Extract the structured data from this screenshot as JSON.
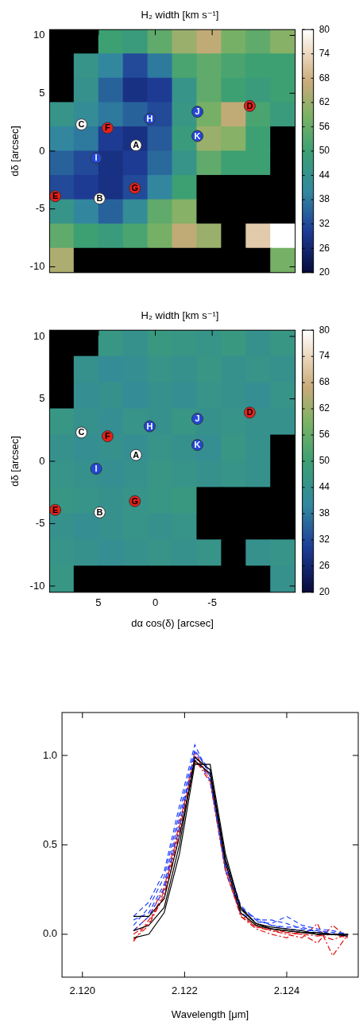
{
  "chart_data": [
    {
      "type": "heatmap",
      "title": "H₂ width [km s⁻¹]",
      "y_label": "dδ [arcsec]",
      "xlim": [
        9.3,
        -12.3
      ],
      "ylim": [
        -10.5,
        10.5
      ],
      "xticks": [
        5,
        0,
        -5
      ],
      "yticks": [
        -10,
        -5,
        0,
        5,
        10
      ],
      "tick_labels": "y",
      "cells_x": [
        8.22,
        6.06,
        3.9,
        1.74,
        -0.42,
        -2.58,
        -4.74,
        -6.9,
        -9.06,
        -11.22
      ],
      "cells_y": [
        9.45,
        7.35,
        5.25,
        3.15,
        1.05,
        -1.05,
        -3.15,
        -5.25,
        -7.35,
        -9.45
      ],
      "cells": [
        [
          null,
          null,
          50,
          48,
          55,
          62,
          66,
          58,
          55,
          60
        ],
        [
          null,
          45,
          40,
          32,
          38,
          52,
          55,
          52,
          50,
          50
        ],
        [
          null,
          44,
          35,
          28,
          30,
          45,
          55,
          50,
          48,
          50
        ],
        [
          45,
          42,
          38,
          35,
          32,
          46,
          58,
          66,
          52,
          48
        ],
        [
          40,
          38,
          30,
          28,
          34,
          48,
          62,
          60,
          50,
          null
        ],
        [
          35,
          32,
          28,
          30,
          36,
          45,
          55,
          50,
          50,
          null
        ],
        [
          32,
          30,
          28,
          32,
          40,
          50,
          null,
          null,
          null,
          null
        ],
        [
          45,
          40,
          35,
          42,
          55,
          60,
          null,
          null,
          null,
          null
        ],
        [
          55,
          50,
          48,
          52,
          58,
          66,
          62,
          null,
          72,
          80
        ],
        [
          64,
          null,
          null,
          null,
          null,
          null,
          null,
          null,
          null,
          58
        ]
      ],
      "colorbar": {
        "range": [
          20,
          80
        ],
        "ticks": [
          20,
          26,
          32,
          38,
          44,
          50,
          56,
          62,
          68,
          74,
          80
        ]
      },
      "markers": {
        "marker": "circle",
        "labels": [
          "A",
          "B",
          "C",
          "D",
          "E",
          "F",
          "G",
          "H",
          "I",
          "J",
          "K"
        ],
        "x": [
          1.7,
          4.9,
          6.5,
          -8.3,
          8.8,
          4.2,
          1.8,
          0.5,
          5.2,
          -3.7,
          -3.7
        ],
        "y": [
          0.5,
          -4.1,
          2.3,
          3.9,
          -3.9,
          2.0,
          -3.2,
          2.8,
          -0.6,
          3.4,
          1.3
        ],
        "colors": [
          "#ffffff",
          "#ffffff",
          "#ffffff",
          "#e8201a",
          "#e8201a",
          "#e8201a",
          "#e8201a",
          "#2248d8",
          "#2248d8",
          "#2248d8",
          "#2248d8"
        ]
      }
    },
    {
      "type": "heatmap",
      "title": "H₂ width [km s⁻¹]",
      "x_label": "dα cos(δ) [arcsec]",
      "y_label": "dδ [arcsec]",
      "xlim": [
        9.3,
        -12.3
      ],
      "ylim": [
        -10.5,
        10.5
      ],
      "xticks": [
        5,
        0,
        -5
      ],
      "yticks": [
        -10,
        -5,
        0,
        5,
        10
      ],
      "cells_x": [
        8.22,
        6.06,
        3.9,
        1.74,
        -0.42,
        -2.58,
        -4.74,
        -6.9,
        -9.06,
        -11.22
      ],
      "cells_y": [
        9.45,
        7.35,
        5.25,
        3.15,
        1.05,
        -1.05,
        -3.15,
        -5.25,
        -7.35,
        -9.45
      ],
      "cells": [
        [
          null,
          null,
          46,
          44,
          47,
          46,
          45,
          47,
          44,
          46
        ],
        [
          null,
          44,
          42,
          43,
          45,
          44,
          46,
          44,
          45,
          44
        ],
        [
          null,
          43,
          44,
          42,
          44,
          43,
          45,
          44,
          43,
          45
        ],
        [
          46,
          44,
          43,
          45,
          44,
          46,
          44,
          45,
          44,
          44
        ],
        [
          44,
          43,
          44,
          43,
          45,
          44,
          43,
          46,
          44,
          null
        ],
        [
          45,
          44,
          43,
          44,
          46,
          45,
          44,
          45,
          44,
          null
        ],
        [
          46,
          45,
          44,
          45,
          46,
          47,
          null,
          null,
          null,
          null
        ],
        [
          44,
          43,
          44,
          45,
          44,
          45,
          null,
          null,
          null,
          null
        ],
        [
          45,
          44,
          43,
          44,
          45,
          44,
          45,
          null,
          44,
          45
        ],
        [
          46,
          null,
          null,
          null,
          null,
          null,
          null,
          null,
          null,
          44
        ]
      ],
      "colorbar": {
        "range": [
          20,
          80
        ],
        "ticks": [
          20,
          26,
          32,
          38,
          44,
          50,
          56,
          62,
          68,
          74,
          80
        ]
      },
      "markers": {
        "marker": "circle",
        "labels": [
          "A",
          "B",
          "C",
          "D",
          "E",
          "F",
          "G",
          "H",
          "I",
          "J",
          "K"
        ],
        "x": [
          1.7,
          4.9,
          6.5,
          -8.3,
          8.8,
          4.2,
          1.8,
          0.5,
          5.2,
          -3.7,
          -3.7
        ],
        "y": [
          0.5,
          -4.1,
          2.3,
          3.9,
          -3.9,
          2.0,
          -3.2,
          2.8,
          -0.6,
          3.4,
          1.3
        ],
        "colors": [
          "#ffffff",
          "#ffffff",
          "#ffffff",
          "#e8201a",
          "#e8201a",
          "#e8201a",
          "#e8201a",
          "#2248d8",
          "#2248d8",
          "#2248d8",
          "#2248d8"
        ]
      }
    },
    {
      "type": "line",
      "x_label": "Wavelength [μm]",
      "xlim": [
        2.1196,
        2.1254
      ],
      "ylim": [
        -0.24,
        1.24
      ],
      "xticks": [
        {
          "value": 2.12,
          "label": "2.120"
        },
        {
          "value": 2.122,
          "label": "2.122"
        },
        {
          "value": 2.124,
          "label": "2.124"
        }
      ],
      "yticks": [
        {
          "value": 0,
          "label": "0.0"
        },
        {
          "value": 0.5,
          "label": "0.5"
        },
        {
          "value": 1,
          "label": "1.0"
        }
      ],
      "x": [
        2.121,
        2.1213,
        2.1216,
        2.1219,
        2.1222,
        2.1225,
        2.1228,
        2.1231,
        2.1234,
        2.1237,
        2.124,
        2.1243,
        2.1246,
        2.1249,
        2.1252
      ],
      "series": [
        {
          "color": "#000000",
          "line_style": "solid",
          "values": [
            0.1,
            0.1,
            0.2,
            0.55,
            0.97,
            0.9,
            0.4,
            0.12,
            0.05,
            0.03,
            0.02,
            0.01,
            0.0,
            0.0,
            0.0
          ]
        },
        {
          "color": "#000000",
          "line_style": "solid",
          "values": [
            0.02,
            0.05,
            0.15,
            0.5,
            0.99,
            0.92,
            0.42,
            0.15,
            0.06,
            0.03,
            0.02,
            0.01,
            0.01,
            0.0,
            -0.01
          ]
        },
        {
          "color": "#000000",
          "line_style": "solid",
          "values": [
            -0.02,
            0.0,
            0.12,
            0.45,
            0.95,
            0.95,
            0.45,
            0.14,
            0.06,
            0.04,
            0.03,
            0.02,
            0.0,
            0.0,
            0.0
          ]
        },
        {
          "color": "#1f3fff",
          "line_style": "dashed",
          "values": [
            0.1,
            0.18,
            0.35,
            0.72,
            1.06,
            0.88,
            0.38,
            0.15,
            0.08,
            0.08,
            0.06,
            0.03,
            0.02,
            0.0,
            0.0
          ]
        },
        {
          "color": "#1f3fff",
          "line_style": "dashed",
          "values": [
            0.05,
            0.15,
            0.32,
            0.68,
            1.03,
            0.9,
            0.4,
            0.14,
            0.09,
            0.05,
            0.04,
            0.04,
            0.01,
            0.0,
            -0.01
          ]
        },
        {
          "color": "#1f3fff",
          "line_style": "dashed",
          "values": [
            0.08,
            0.12,
            0.28,
            0.65,
            1.0,
            0.86,
            0.36,
            0.12,
            0.07,
            0.06,
            0.1,
            0.05,
            0.03,
            0.02,
            0.0
          ]
        },
        {
          "color": "#1f3fff",
          "line_style": "dashed",
          "values": [
            0.02,
            0.1,
            0.25,
            0.6,
            1.02,
            0.92,
            0.42,
            0.16,
            0.08,
            0.05,
            0.03,
            0.02,
            0.02,
            0.01,
            0.0
          ]
        },
        {
          "color": "#e01010",
          "line_style": "dashdot",
          "values": [
            -0.03,
            0.05,
            0.22,
            0.58,
            1.0,
            0.88,
            0.38,
            0.12,
            0.05,
            0.02,
            0.0,
            -0.02,
            0.06,
            -0.12,
            0.0
          ]
        },
        {
          "color": "#e01010",
          "line_style": "dashdot",
          "values": [
            -0.04,
            0.08,
            0.2,
            0.55,
            0.96,
            0.9,
            0.4,
            0.1,
            0.04,
            0.02,
            0.01,
            0.0,
            -0.05,
            0.05,
            -0.02
          ]
        },
        {
          "color": "#e01010",
          "line_style": "dashdot",
          "values": [
            0.0,
            0.06,
            0.24,
            0.6,
            1.02,
            0.86,
            0.36,
            0.1,
            0.03,
            0.0,
            -0.02,
            0.02,
            0.0,
            -0.03,
            0.0
          ]
        },
        {
          "color": "#e01010",
          "line_style": "dashdot",
          "values": [
            0.02,
            0.1,
            0.26,
            0.62,
            0.98,
            0.85,
            0.35,
            0.11,
            0.04,
            0.03,
            0.01,
            0.0,
            -0.01,
            0.0,
            -0.02
          ]
        }
      ]
    }
  ]
}
